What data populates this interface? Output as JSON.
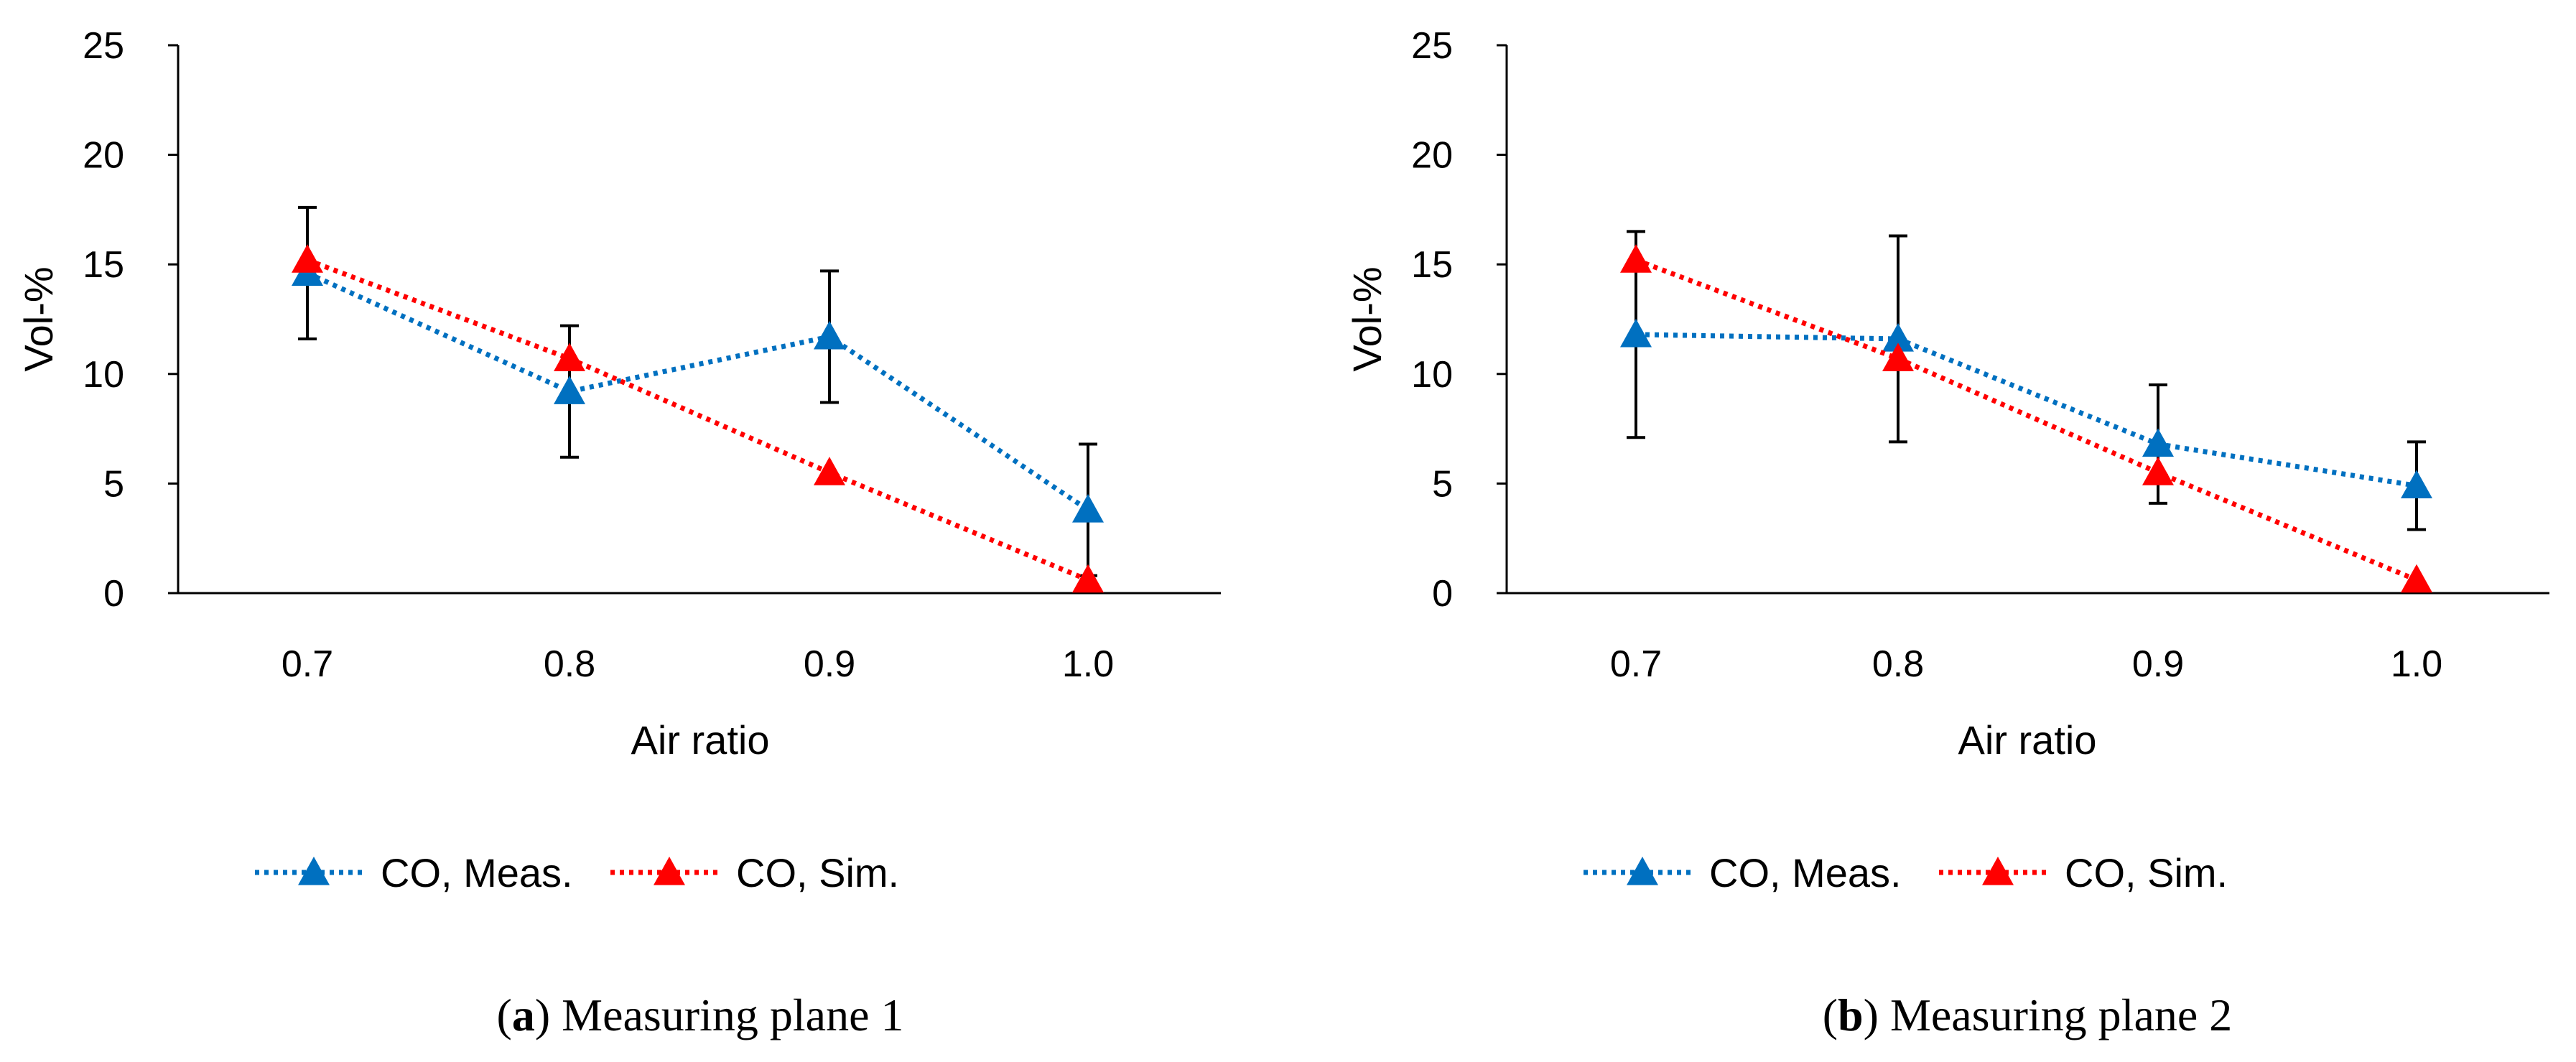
{
  "chart_data": [
    {
      "type": "line",
      "caption_letter": "a",
      "caption_text": "Measuring plane 1",
      "categories": [
        "0.7",
        "0.8",
        "0.9",
        "1.0"
      ],
      "xlabel": "Air ratio",
      "ylabel": "Vol-%",
      "ylim": [
        0,
        25
      ],
      "yticks": [
        "0",
        "5",
        "10",
        "15",
        "20",
        "25"
      ],
      "series": [
        {
          "name": "CO, Meas.",
          "color": "#0070C0",
          "values": [
            14.6,
            9.2,
            11.7,
            3.8
          ],
          "err": [
            3.0,
            3.0,
            3.0,
            3.0
          ]
        },
        {
          "name": "CO, Sim.",
          "color": "#FF0000",
          "values": [
            15.2,
            10.7,
            5.5,
            0.6
          ]
        }
      ]
    },
    {
      "type": "line",
      "caption_letter": "b",
      "caption_text": "Measuring plane 2",
      "categories": [
        "0.7",
        "0.8",
        "0.9",
        "1.0"
      ],
      "xlabel": "Air ratio",
      "ylabel": "Vol-%",
      "ylim": [
        0,
        25
      ],
      "yticks": [
        "0",
        "5",
        "10",
        "15",
        "20",
        "25"
      ],
      "series": [
        {
          "name": "CO, Meas.",
          "color": "#0070C0",
          "values": [
            11.8,
            11.6,
            6.8,
            4.9
          ],
          "err": [
            4.7,
            4.7,
            2.7,
            2.0
          ]
        },
        {
          "name": "CO, Sim.",
          "color": "#FF0000",
          "values": [
            15.2,
            10.7,
            5.5,
            0.6
          ]
        }
      ]
    }
  ]
}
